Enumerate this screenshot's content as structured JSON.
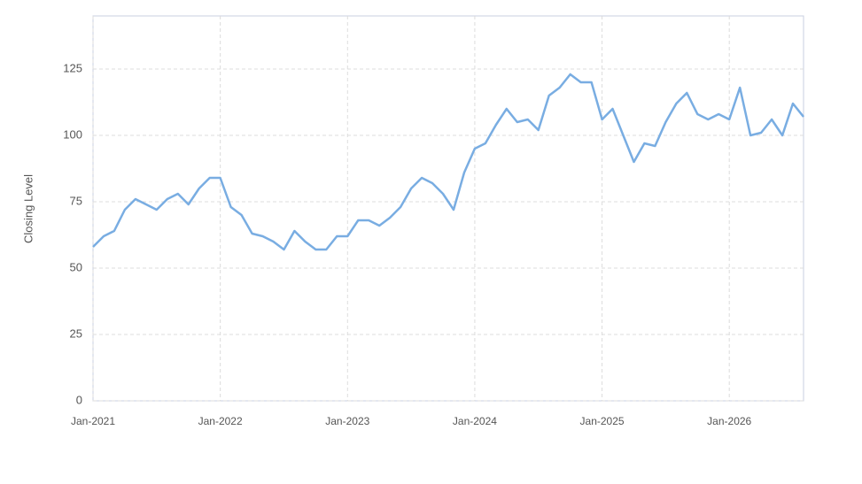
{
  "chart_data": {
    "type": "line",
    "y_label": "Closing Level",
    "x": [
      "2021-01",
      "2021-02",
      "2021-03",
      "2021-04",
      "2021-05",
      "2021-06",
      "2021-07",
      "2021-08",
      "2021-09",
      "2021-10",
      "2021-11",
      "2021-12",
      "2022-01",
      "2022-02",
      "2022-03",
      "2022-04",
      "2022-05",
      "2022-06",
      "2022-07",
      "2022-08",
      "2022-09",
      "2022-10",
      "2022-11",
      "2022-12",
      "2023-01",
      "2023-02",
      "2023-03",
      "2023-04",
      "2023-05",
      "2023-06",
      "2023-07",
      "2023-08",
      "2023-09",
      "2023-10",
      "2023-11",
      "2023-12",
      "2024-01",
      "2024-02",
      "2024-03",
      "2024-04",
      "2024-05",
      "2024-06",
      "2024-07",
      "2024-08",
      "2024-09",
      "2024-10",
      "2024-11",
      "2024-12",
      "2025-01",
      "2025-02",
      "2025-03",
      "2025-04",
      "2025-05",
      "2025-06",
      "2025-07",
      "2025-08",
      "2025-09",
      "2025-10",
      "2025-11",
      "2025-12",
      "2026-01",
      "2026-02",
      "2026-03",
      "2026-04",
      "2026-05",
      "2026-06",
      "2026-07",
      "2026-08"
    ],
    "series": [
      {
        "name": "Closing Level",
        "color": "#79ade2",
        "values": [
          58,
          62,
          64,
          72,
          76,
          74,
          72,
          76,
          78,
          74,
          80,
          84,
          84,
          73,
          70,
          63,
          62,
          60,
          57,
          64,
          60,
          57,
          57,
          62,
          62,
          68,
          68,
          66,
          69,
          73,
          80,
          84,
          82,
          78,
          72,
          86,
          95,
          97,
          104,
          110,
          105,
          106,
          102,
          115,
          118,
          123,
          120,
          120,
          106,
          110,
          100,
          90,
          97,
          96,
          105,
          112,
          116,
          108,
          106,
          108,
          106,
          118,
          100,
          101,
          106,
          100,
          112,
          107
        ]
      }
    ],
    "xlim": [
      "2021-01",
      "2026-08"
    ],
    "xticks": [
      {
        "value": "2021-01",
        "label": "Jan-2021"
      },
      {
        "value": "2022-01",
        "label": "Jan-2022"
      },
      {
        "value": "2023-01",
        "label": "Jan-2023"
      },
      {
        "value": "2024-01",
        "label": "Jan-2024"
      },
      {
        "value": "2025-01",
        "label": "Jan-2025"
      },
      {
        "value": "2026-01",
        "label": "Jan-2026"
      }
    ],
    "ylim": [
      0,
      145
    ],
    "yticks": [
      0,
      25,
      50,
      75,
      100,
      125
    ],
    "grid": true
  }
}
